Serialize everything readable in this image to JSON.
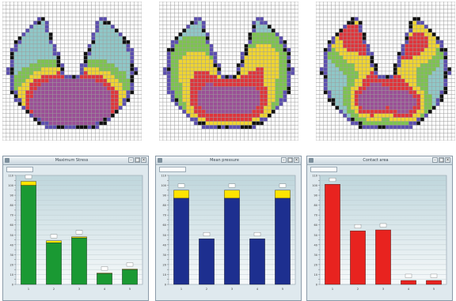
{
  "heatmaps": [
    {
      "grid_cols": 36,
      "grid_rows": 36
    },
    {
      "grid_cols": 36,
      "grid_rows": 36
    },
    {
      "grid_cols": 36,
      "grid_rows": 36
    }
  ],
  "colors": {
    "heat_low": "#5c4fb0",
    "heat_mid_low": "#8fc8c8",
    "heat_mid": "#7dc44e",
    "heat_high": "#f0d530",
    "heat_hot": "#e0343b",
    "heat_peak": "#9b4f96",
    "bar_green": "#1a9933",
    "bar_blue": "#1d2f8f",
    "bar_red": "#e8231f",
    "cap_yellow": "#ffe400",
    "window_bg": "#dfe9ee"
  },
  "windows": [
    {
      "title": "Maximum Stress"
    },
    {
      "title": "Mean pressure"
    },
    {
      "title": "Contact area"
    }
  ],
  "chart_data": [
    {
      "type": "bar",
      "categories": [
        "1",
        "2",
        "3",
        "4",
        "5"
      ],
      "series": [
        {
          "values": [
            100,
            42,
            47,
            11,
            15
          ]
        }
      ],
      "cap_values": [
        4,
        2,
        1,
        0.5,
        0.5
      ],
      "ylim": [
        0,
        110
      ],
      "grid": true
    },
    {
      "type": "bar",
      "categories": [
        "1",
        "2",
        "3",
        "4",
        "5"
      ],
      "series": [
        {
          "values": [
            87,
            46,
            87,
            46,
            87
          ]
        }
      ],
      "cap_values": [
        8,
        0,
        8,
        0,
        8
      ],
      "ylim": [
        0,
        110
      ],
      "grid": true
    },
    {
      "type": "bar",
      "categories": [
        "1",
        "2",
        "3",
        "4",
        "5"
      ],
      "series": [
        {
          "values": [
            101,
            54,
            55,
            4,
            4
          ]
        }
      ],
      "cap_values": [
        0,
        0,
        0,
        0,
        0
      ],
      "ylim": [
        0,
        110
      ],
      "grid": true
    }
  ]
}
